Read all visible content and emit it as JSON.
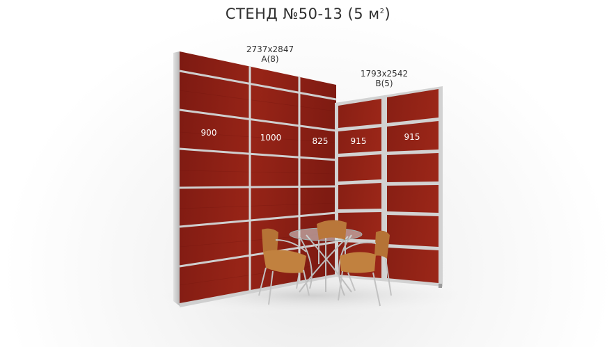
{
  "title": {
    "text": "СТЕНД №50-13 (5 м",
    "superscript": "2",
    "closing": ")"
  },
  "wall_a": {
    "dimensions": "2737x2847",
    "code": "A(8)",
    "widths": [
      "900",
      "1000",
      "825"
    ]
  },
  "wall_b": {
    "dimensions": "1793x2542",
    "code": "B(5)",
    "widths": [
      "915",
      "915"
    ]
  },
  "colors": {
    "panel": "#8e1d14",
    "frame": "#c9c9c9",
    "chair": "#b9773a"
  }
}
